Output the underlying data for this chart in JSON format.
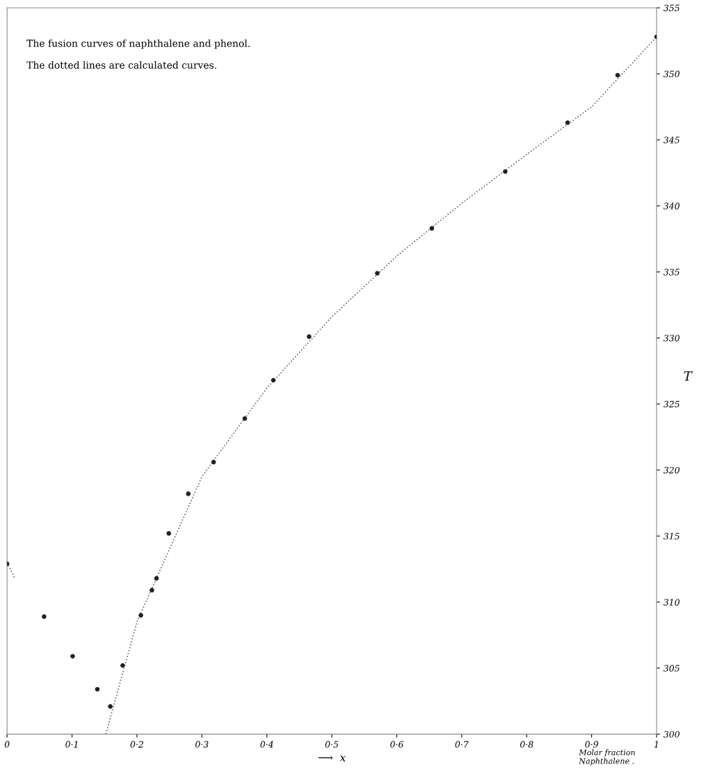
{
  "chart_data": {
    "type": "scatter",
    "xlabel": "⟶  x",
    "ylabel": "T",
    "annotations": [
      "The fusion curves of naphthalene and phenol.",
      "The dotted lines are calculated curves.",
      "Molar fraction\nNaphthalene ."
    ],
    "series": [
      {
        "color": "#222222",
        "marker": "circle",
        "x": [
          0.0,
          0.057,
          0.101,
          0.139,
          0.159
        ],
        "values": [
          312.9,
          308.9,
          305.9,
          303.4,
          302.1
        ]
      },
      {
        "color": "#222222",
        "marker": "circle",
        "x": [
          0.178,
          0.206,
          0.223,
          0.23,
          0.249,
          0.279,
          0.318,
          0.366,
          0.41,
          0.465,
          0.57,
          0.654,
          0.767,
          0.863,
          0.94,
          1.0
        ],
        "values": [
          305.2,
          309.0,
          310.9,
          311.8,
          315.2,
          318.2,
          320.6,
          323.9,
          326.8,
          330.1,
          334.9,
          338.3,
          342.6,
          346.3,
          349.9,
          352.8
        ]
      },
      {
        "type": "line",
        "color": "#666666",
        "line_style": "dotted",
        "marker": "none",
        "x": [
          0.152,
          0.2,
          0.3,
          0.4,
          0.5,
          0.6,
          0.7,
          0.8,
          0.9,
          1.0
        ],
        "values": [
          300.0,
          308.5,
          319.5,
          326.2,
          331.6,
          336.2,
          340.2,
          343.9,
          347.5,
          352.8
        ]
      },
      {
        "type": "line",
        "color": "#666666",
        "line_style": "dotted",
        "marker": "none",
        "x": [
          0.0,
          0.012
        ],
        "values": [
          313.0,
          311.8
        ]
      }
    ],
    "xlim": [
      0,
      1
    ],
    "ylim": [
      300,
      355
    ],
    "xticks": [
      0,
      {
        "value": 0.1,
        "label": "0·1"
      },
      {
        "value": 0.2,
        "label": "0·2"
      },
      {
        "value": 0.3,
        "label": "0·3"
      },
      {
        "value": 0.4,
        "label": "0·4"
      },
      {
        "value": 0.5,
        "label": "0·5"
      },
      {
        "value": 0.6,
        "label": "0·6"
      },
      {
        "value": 0.7,
        "label": "0·7"
      },
      {
        "value": 0.8,
        "label": "0·8"
      },
      {
        "value": 0.9,
        "label": "0·9"
      },
      1
    ],
    "yticks": [
      300,
      305,
      310,
      315,
      320,
      325,
      330,
      335,
      340,
      345,
      350,
      355
    ],
    "grid": false,
    "legend": false
  }
}
